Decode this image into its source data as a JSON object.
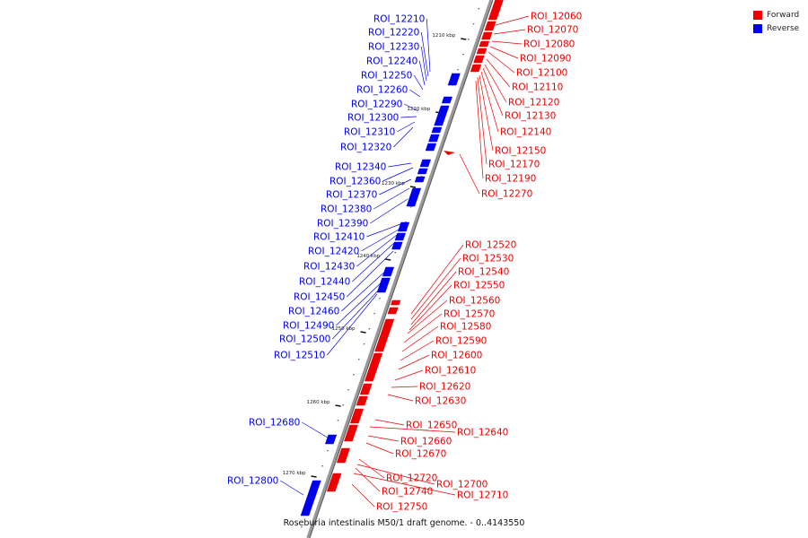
{
  "colors": {
    "forward": "#ee0000",
    "reverse": "#0000ee",
    "backbone": "#888888",
    "tick": "#111111"
  },
  "legend": [
    {
      "label": "Forward",
      "color": "#ee0000"
    },
    {
      "label": "Reverse",
      "color": "#0000ee"
    }
  ],
  "caption": "Roseburia intestinalis M50/1 draft genome. - 0..4143550",
  "ruler": [
    "1210 kbp",
    "1220 kbp",
    "1230 kbp",
    "1240 kbp",
    "1250 kbp",
    "1260 kbp",
    "1270 kbp"
  ],
  "reverse_labels": [
    "ROI_12210",
    "ROI_12220",
    "ROI_12230",
    "ROI_12240",
    "ROI_12250",
    "ROI_12260",
    "ROI_12290",
    "ROI_12300",
    "ROI_12310",
    "ROI_12320",
    "ROI_12340",
    "ROI_12360",
    "ROI_12370",
    "ROI_12380",
    "ROI_12390",
    "ROI_12410",
    "ROI_12420",
    "ROI_12430",
    "ROI_12440",
    "ROI_12450",
    "ROI_12460",
    "ROI_12490",
    "ROI_12500",
    "ROI_12510",
    "ROI_12680",
    "ROI_12800"
  ],
  "forward_labels": [
    "ROI_12060",
    "ROI_12070",
    "ROI_12080",
    "ROI_12090",
    "ROI_12100",
    "ROI_12110",
    "ROI_12120",
    "ROI_12130",
    "ROI_12140",
    "ROI_12150",
    "ROI_12170",
    "ROI_12190",
    "ROI_12270",
    "ROI_12520",
    "ROI_12530",
    "ROI_12540",
    "ROI_12550",
    "ROI_12560",
    "ROI_12570",
    "ROI_12580",
    "ROI_12590",
    "ROI_12600",
    "ROI_12610",
    "ROI_12620",
    "ROI_12630",
    "ROI_12650",
    "ROI_12640",
    "ROI_12660",
    "ROI_12670",
    "ROI_12720",
    "ROI_12700",
    "ROI_12740",
    "ROI_12710",
    "ROI_12750"
  ]
}
